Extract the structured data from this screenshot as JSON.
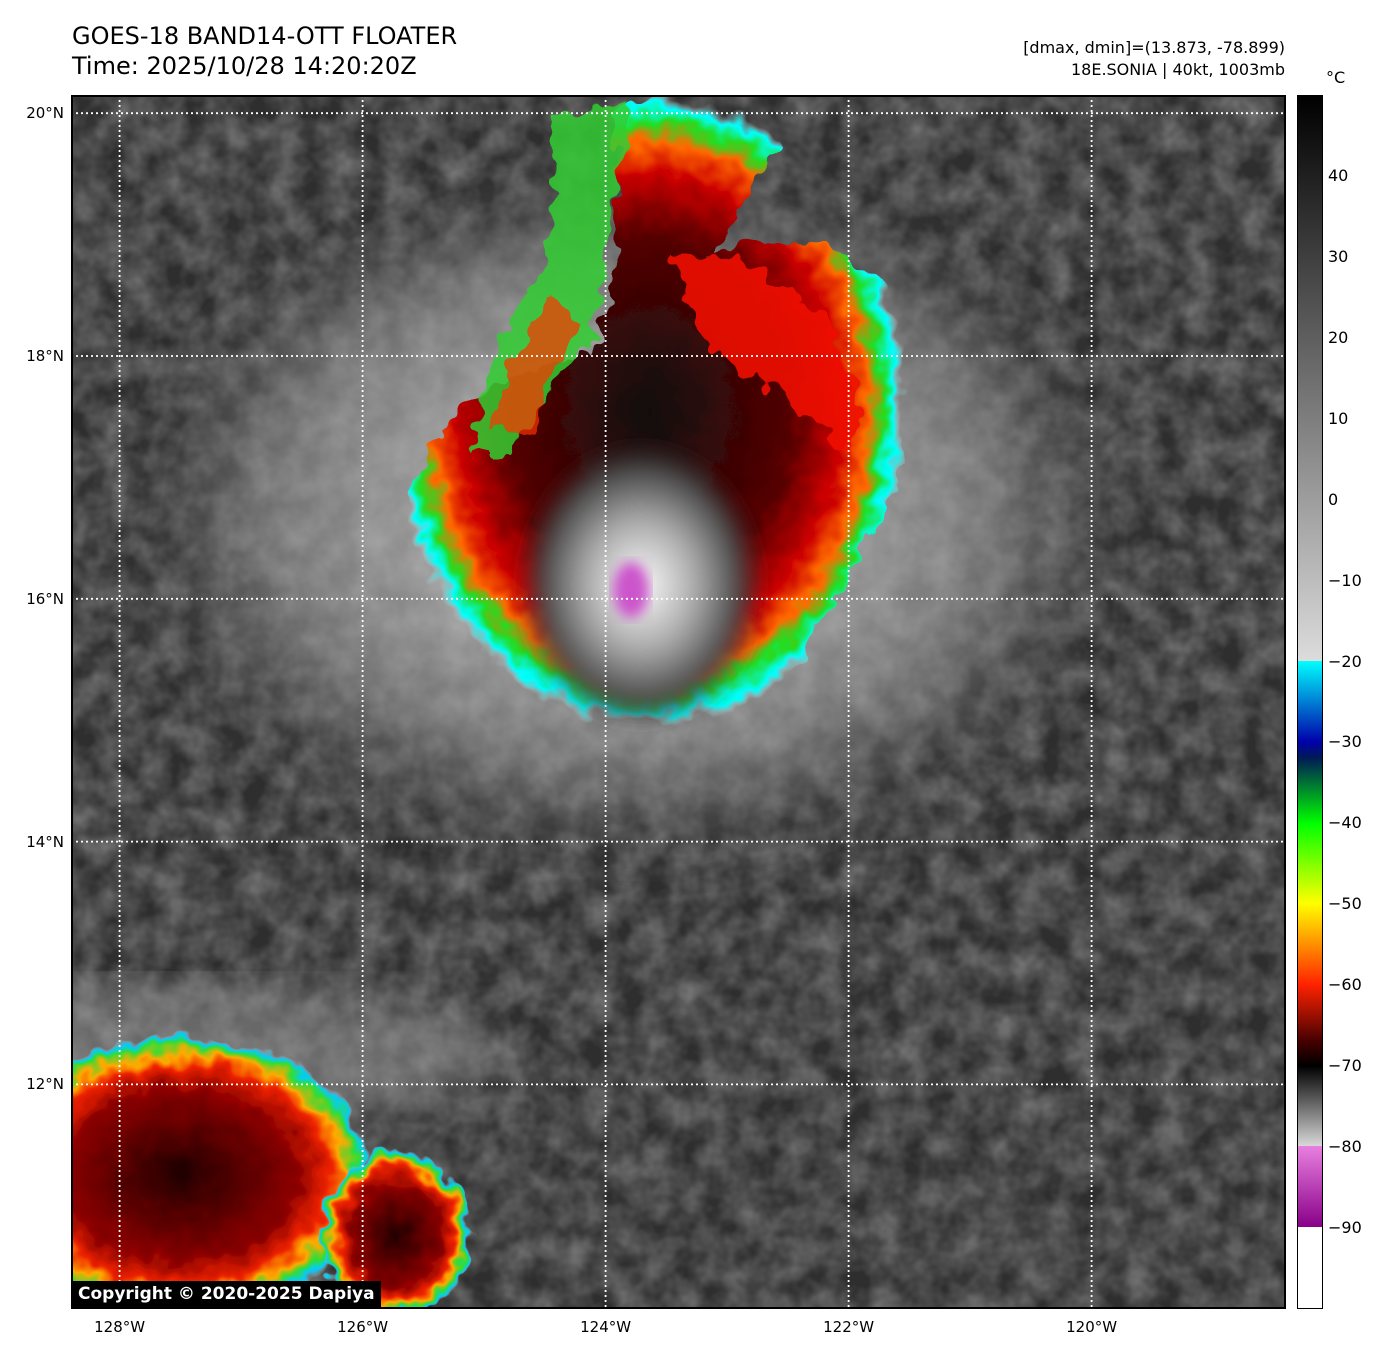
{
  "header": {
    "title": "GOES-18 BAND14-OTT FLOATER",
    "time": "Time: 2025/10/28 14:20:20Z",
    "dmax_dmin": "[dmax, dmin]=(13.873, -78.899)",
    "storm": "18E.SONIA | 40kt, 1003mb"
  },
  "map": {
    "lat_labels": [
      "20°N",
      "18°N",
      "16°N",
      "14°N",
      "12°N"
    ],
    "lon_labels": [
      "128°W",
      "126°W",
      "124°W",
      "122°W",
      "120°W"
    ],
    "lat_values": [
      20,
      18,
      16,
      14,
      12
    ],
    "lon_values": [
      -128,
      -126,
      -124,
      -122,
      -120
    ],
    "lat_range": [
      10.15,
      20.15
    ],
    "lon_range": [
      -128.4,
      -118.4
    ],
    "gridlines": "dotted white",
    "storm_center": {
      "lat": 16.1,
      "lon": -123.85
    }
  },
  "colorbar": {
    "unit": "°C",
    "ticks": [
      "40",
      "30",
      "20",
      "10",
      "0",
      "−10",
      "−20",
      "−30",
      "−40",
      "−50",
      "−60",
      "−70",
      "−80",
      "−90"
    ],
    "tick_values": [
      40,
      30,
      20,
      10,
      0,
      -10,
      -20,
      -30,
      -40,
      -50,
      -60,
      -70,
      -80,
      -90
    ],
    "range": [
      -100,
      50
    ]
  },
  "copyright": "Copyright © 2020-2025 Dapiya"
}
